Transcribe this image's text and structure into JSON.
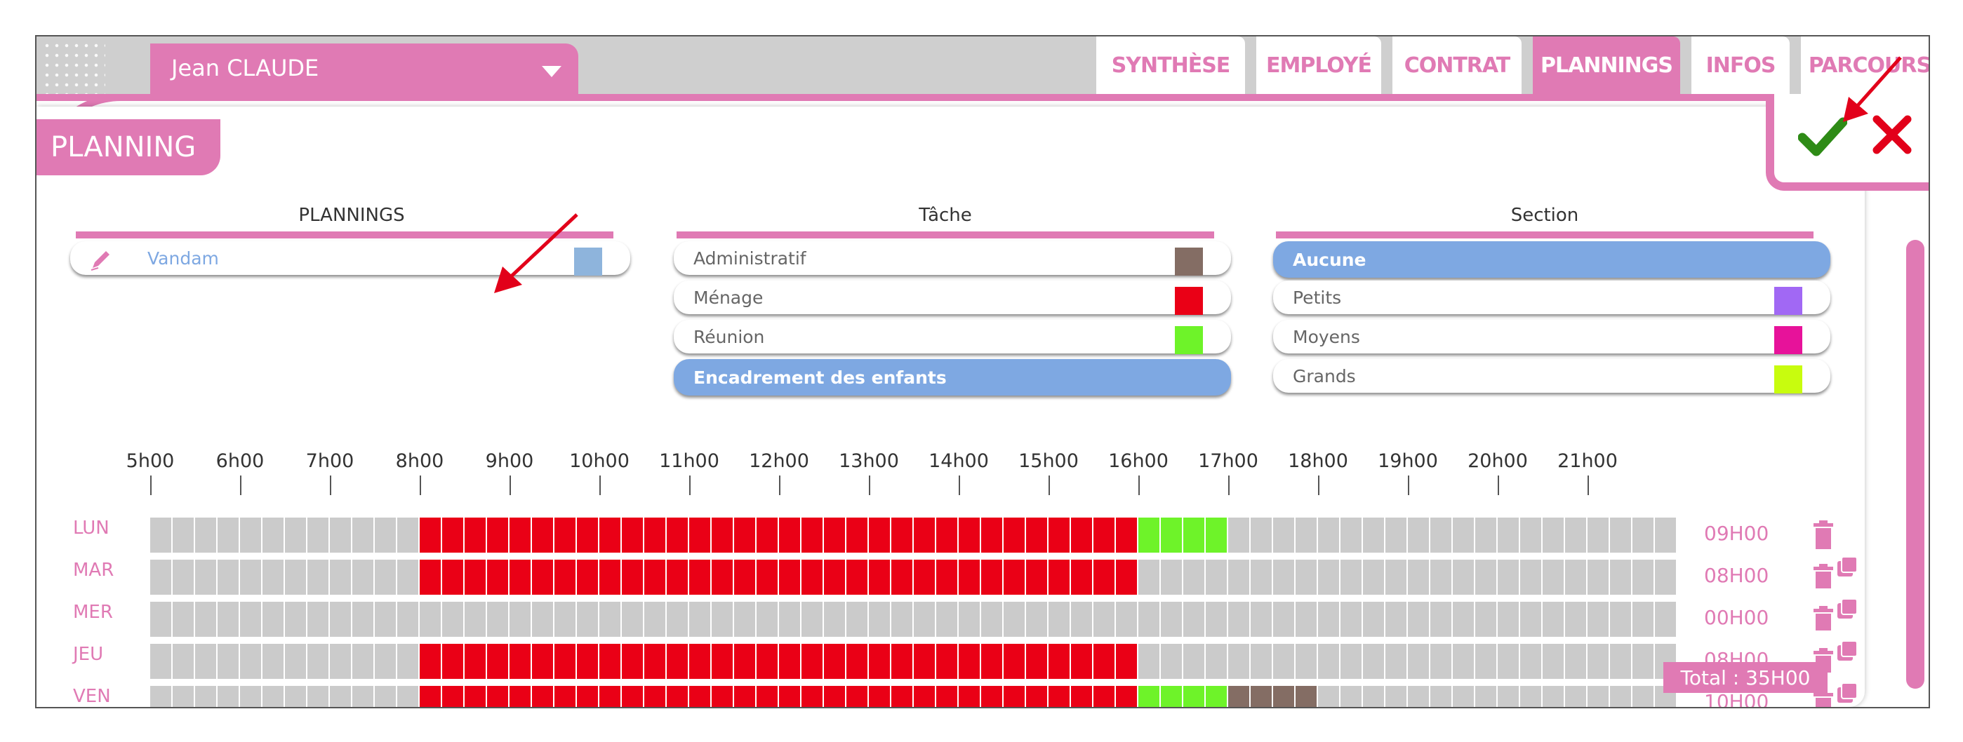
{
  "employee": {
    "name": "Jean CLAUDE"
  },
  "tabs": [
    {
      "label": "SYNTHÈSE",
      "active": false
    },
    {
      "label": "EMPLOYÉ",
      "active": false
    },
    {
      "label": "CONTRAT",
      "active": false
    },
    {
      "label": "PLANNINGS",
      "active": true
    },
    {
      "label": "INFOS",
      "active": false
    },
    {
      "label": "PARCOURS",
      "active": false
    }
  ],
  "section_title": "PLANNING",
  "actions": {
    "confirm_icon": "check-icon",
    "cancel_icon": "close-icon",
    "confirm_color": "#2e8b16",
    "cancel_color": "#e2001a"
  },
  "plannings": {
    "title": "PLANNINGS",
    "items": [
      {
        "label": "Vandam",
        "color": "#8eb4dc",
        "icon": "pencil-icon"
      }
    ]
  },
  "tache": {
    "title": "Tâche",
    "items": [
      {
        "label": "Administratif",
        "color": "#846d64",
        "selected": false
      },
      {
        "label": "Ménage",
        "color": "#ea0016",
        "selected": false
      },
      {
        "label": "Réunion",
        "color": "#6ef329",
        "selected": false
      },
      {
        "label": "Encadrement des enfants",
        "color": "",
        "selected": true
      }
    ]
  },
  "section": {
    "title": "Section",
    "items": [
      {
        "label": "Aucune",
        "color": "",
        "selected": true
      },
      {
        "label": "Petits",
        "color": "#a168f4",
        "selected": false
      },
      {
        "label": "Moyens",
        "color": "#e7129a",
        "selected": false
      },
      {
        "label": "Grands",
        "color": "#c8fc0e",
        "selected": false
      }
    ]
  },
  "hours": [
    "5h00",
    "6h00",
    "7h00",
    "8h00",
    "9h00",
    "10h00",
    "11h00",
    "12h00",
    "13h00",
    "14h00",
    "15h00",
    "16h00",
    "17h00",
    "18h00",
    "19h00",
    "20h00",
    "21h00"
  ],
  "colors": {
    "empty": "#cbcbcb",
    "red": "#ea0016",
    "green": "#6ef329",
    "brown": "#846d64",
    "accent": "#e07ab4"
  },
  "days": [
    {
      "label": "LUN",
      "total": "09H00",
      "copy": false,
      "segments": [
        {
          "from": 12,
          "to": 44,
          "color": "red"
        },
        {
          "from": 44,
          "to": 48,
          "color": "green"
        }
      ]
    },
    {
      "label": "MAR",
      "total": "08H00",
      "copy": true,
      "segments": [
        {
          "from": 12,
          "to": 44,
          "color": "red"
        }
      ]
    },
    {
      "label": "MER",
      "total": "00H00",
      "copy": true,
      "segments": []
    },
    {
      "label": "JEU",
      "total": "08H00",
      "copy": true,
      "segments": [
        {
          "from": 12,
          "to": 44,
          "color": "red"
        }
      ]
    },
    {
      "label": "VEN",
      "total": "10H00",
      "copy": true,
      "segments": [
        {
          "from": 12,
          "to": 44,
          "color": "red"
        },
        {
          "from": 44,
          "to": 48,
          "color": "green"
        },
        {
          "from": 48,
          "to": 52,
          "color": "brown"
        }
      ]
    }
  ],
  "grand_total": "Total : 35H00"
}
